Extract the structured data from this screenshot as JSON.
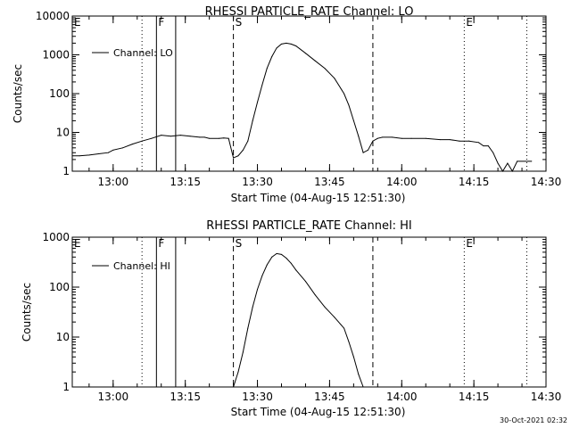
{
  "footer": {
    "timestamp": "30-Oct-2021 02:32"
  },
  "chart_data": [
    {
      "type": "line",
      "title": "RHESSI PARTICLE_RATE Channel: LO",
      "xlabel": "Start Time (04-Aug-15 12:51:30)",
      "ylabel": "Counts/sec",
      "yscale": "log",
      "xlim": [
        "12:51:30",
        "14:30:00"
      ],
      "ylim": [
        1,
        10000
      ],
      "x_ticks": [
        "13:00",
        "13:15",
        "13:30",
        "13:45",
        "14:00",
        "14:15",
        "14:30"
      ],
      "y_ticks": [
        1,
        10,
        100,
        1000,
        10000
      ],
      "y_tick_labels": [
        "1",
        "10",
        "100",
        "1000",
        "10000"
      ],
      "legend": {
        "position": "top-left",
        "entries": [
          "Channel: LO"
        ]
      },
      "series": [
        {
          "name": "Channel: LO",
          "x": [
            "12:51:30",
            "12:53",
            "12:55",
            "12:57",
            "12:59",
            "13:00",
            "13:02",
            "13:04",
            "13:06",
            "13:08",
            "13:10",
            "13:12",
            "13:14",
            "13:16",
            "13:18",
            "13:19",
            "13:20",
            "13:22",
            "13:23",
            "13:24",
            "13:25",
            "13:26",
            "13:27",
            "13:28",
            "13:29",
            "13:30",
            "13:31",
            "13:32",
            "13:33",
            "13:34",
            "13:35",
            "13:36",
            "13:37",
            "13:38",
            "13:40",
            "13:42",
            "13:44",
            "13:46",
            "13:48",
            "13:49",
            "13:50",
            "13:51",
            "13:52",
            "13:53",
            "13:54",
            "13:55",
            "13:56",
            "13:58",
            "14:00",
            "14:02",
            "14:05",
            "14:08",
            "14:10",
            "14:12",
            "14:14",
            "14:16",
            "14:17",
            "14:18",
            "14:19",
            "14:20",
            "14:21",
            "14:22",
            "14:23",
            "14:24",
            "14:27"
          ],
          "y": [
            2.5,
            2.5,
            2.6,
            2.8,
            3.0,
            3.5,
            4.0,
            5.0,
            6.0,
            7.0,
            8.5,
            8.0,
            8.5,
            8.0,
            7.5,
            7.5,
            7.0,
            7.0,
            7.2,
            7.0,
            2.2,
            2.5,
            3.5,
            6,
            20,
            60,
            170,
            450,
            900,
            1500,
            1900,
            2000,
            1900,
            1700,
            1100,
            700,
            450,
            250,
            100,
            50,
            20,
            8,
            3.0,
            3.5,
            6,
            7,
            7.5,
            7.5,
            7,
            7,
            7,
            6.5,
            6.5,
            6,
            6,
            5.5,
            4.5,
            4.5,
            3.0,
            1.6,
            1.0,
            1.6,
            1.0,
            1.8,
            1.8
          ]
        }
      ],
      "lines": [
        {
          "label": "E",
          "x": "12:51:30",
          "style": "dotted"
        },
        {
          "label": "",
          "x": "13:06",
          "style": "dotted"
        },
        {
          "label": "F",
          "x": "13:09",
          "style": "solid"
        },
        {
          "label": "",
          "x": "13:13",
          "style": "solid"
        },
        {
          "label": "S",
          "x": "13:25",
          "style": "dashed"
        },
        {
          "label": "",
          "x": "13:54",
          "style": "dashed"
        },
        {
          "label": "E",
          "x": "14:13",
          "style": "dotted"
        },
        {
          "label": "",
          "x": "14:26",
          "style": "dotted"
        }
      ]
    },
    {
      "type": "line",
      "title": "RHESSI PARTICLE_RATE Channel: HI",
      "xlabel": "Start Time (04-Aug-15 12:51:30)",
      "ylabel": "Counts/sec",
      "yscale": "log",
      "xlim": [
        "12:51:30",
        "14:30:00"
      ],
      "ylim": [
        1,
        1000
      ],
      "x_ticks": [
        "13:00",
        "13:15",
        "13:30",
        "13:45",
        "14:00",
        "14:15",
        "14:30"
      ],
      "y_ticks": [
        1,
        10,
        100,
        1000
      ],
      "y_tick_labels": [
        "1",
        "10",
        "100",
        "1000"
      ],
      "legend": {
        "position": "top-left",
        "entries": [
          "Channel: HI"
        ]
      },
      "series": [
        {
          "name": "Channel: HI",
          "x": [
            "13:25",
            "13:26",
            "13:27",
            "13:28",
            "13:29",
            "13:30",
            "13:31",
            "13:32",
            "13:33",
            "13:34",
            "13:35",
            "13:36",
            "13:37",
            "13:38",
            "13:40",
            "13:42",
            "13:44",
            "13:46",
            "13:48",
            "13:49",
            "13:50",
            "13:51",
            "13:52"
          ],
          "y": [
            1,
            2,
            5,
            15,
            40,
            90,
            170,
            280,
            400,
            470,
            450,
            380,
            300,
            220,
            130,
            70,
            40,
            25,
            15,
            8,
            4,
            1.8,
            1
          ]
        }
      ],
      "lines": [
        {
          "label": "E",
          "x": "12:51:30",
          "style": "dotted"
        },
        {
          "label": "",
          "x": "13:06",
          "style": "dotted"
        },
        {
          "label": "F",
          "x": "13:09",
          "style": "solid"
        },
        {
          "label": "",
          "x": "13:13",
          "style": "solid"
        },
        {
          "label": "S",
          "x": "13:25",
          "style": "dashed"
        },
        {
          "label": "",
          "x": "13:54",
          "style": "dashed"
        },
        {
          "label": "E",
          "x": "14:13",
          "style": "dotted"
        },
        {
          "label": "",
          "x": "14:26",
          "style": "dotted"
        }
      ]
    }
  ]
}
